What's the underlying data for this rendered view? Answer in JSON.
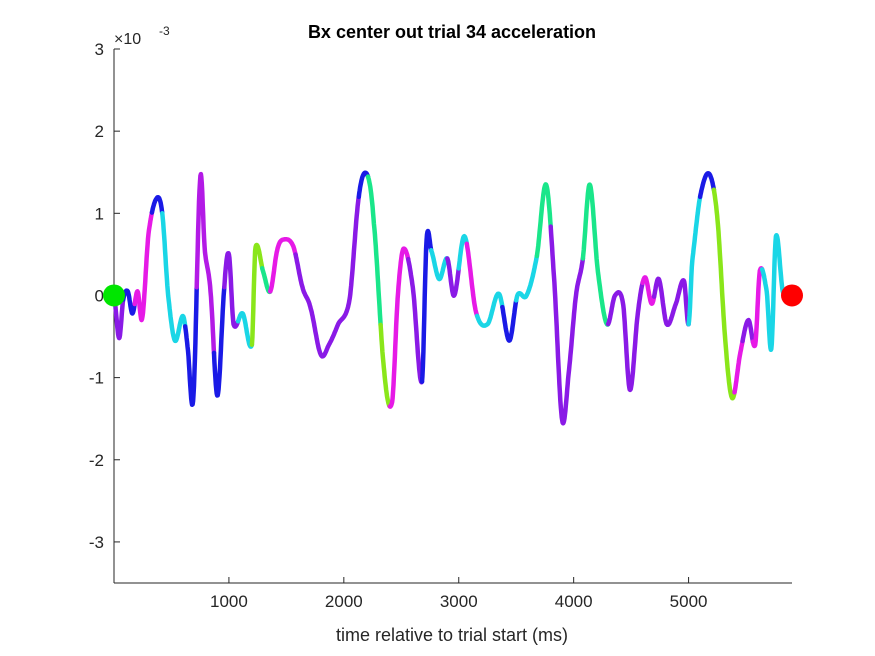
{
  "chart_data": {
    "type": "scatter",
    "title": "Bx  center out trial 34 acceleration",
    "xlabel": "time relative to trial start (ms)",
    "ylabel": "",
    "exponent_label": "×10",
    "exponent_power": "-3",
    "xlim": [
      0,
      5900
    ],
    "ylim": [
      -3.5,
      3
    ],
    "xticks": [
      1000,
      2000,
      3000,
      4000,
      5000
    ],
    "xtick_labels": [
      "1000",
      "2000",
      "3000",
      "4000",
      "5000"
    ],
    "yticks": [
      3,
      2,
      1,
      0,
      -1,
      -2,
      -3
    ],
    "ytick_labels": [
      "3",
      "2",
      "1",
      "0",
      "-1",
      "-2",
      "-3"
    ],
    "grid": false,
    "start_marker": {
      "x": 0,
      "y": 0,
      "color": "#00e600"
    },
    "end_marker": {
      "x": 5900,
      "y": 0,
      "color": "#ff0000"
    },
    "colors": {
      "blue": "#1a1ae6",
      "violet": "#8a1ae6",
      "magenta": "#e61ae6",
      "cyan": "#1ad6e6",
      "green": "#1ae68a",
      "lime": "#8ae61a",
      "purple": "#b31ae6"
    },
    "keypoints": [
      [
        0,
        0.0
      ],
      [
        45,
        -0.52
      ],
      [
        80,
        -0.05
      ],
      [
        120,
        0.05
      ],
      [
        160,
        -0.22
      ],
      [
        205,
        0.05
      ],
      [
        245,
        -0.28
      ],
      [
        300,
        0.75
      ],
      [
        370,
        1.18
      ],
      [
        420,
        1.0
      ],
      [
        470,
        0.02
      ],
      [
        530,
        -0.55
      ],
      [
        600,
        -0.25
      ],
      [
        640,
        -0.62
      ],
      [
        690,
        -1.25
      ],
      [
        750,
        1.42
      ],
      [
        790,
        0.55
      ],
      [
        840,
        0.05
      ],
      [
        900,
        -1.22
      ],
      [
        960,
        0.1
      ],
      [
        1000,
        0.5
      ],
      [
        1040,
        -0.35
      ],
      [
        1120,
        -0.22
      ],
      [
        1200,
        -0.6
      ],
      [
        1230,
        0.58
      ],
      [
        1300,
        0.28
      ],
      [
        1360,
        0.05
      ],
      [
        1420,
        0.55
      ],
      [
        1470,
        0.68
      ],
      [
        1560,
        0.6
      ],
      [
        1640,
        0.1
      ],
      [
        1710,
        -0.15
      ],
      [
        1800,
        -0.72
      ],
      [
        1870,
        -0.6
      ],
      [
        1950,
        -0.35
      ],
      [
        2050,
        -0.05
      ],
      [
        2130,
        1.2
      ],
      [
        2200,
        1.48
      ],
      [
        2260,
        0.9
      ],
      [
        2350,
        -0.9
      ],
      [
        2420,
        -1.3
      ],
      [
        2470,
        0.0
      ],
      [
        2520,
        0.57
      ],
      [
        2600,
        0.1
      ],
      [
        2680,
        -1.05
      ],
      [
        2720,
        0.68
      ],
      [
        2760,
        0.55
      ],
      [
        2830,
        0.2
      ],
      [
        2900,
        0.45
      ],
      [
        2960,
        0.0
      ],
      [
        3050,
        0.72
      ],
      [
        3150,
        -0.2
      ],
      [
        3250,
        -0.35
      ],
      [
        3350,
        0.02
      ],
      [
        3440,
        -0.55
      ],
      [
        3510,
        0.0
      ],
      [
        3590,
        0.0
      ],
      [
        3680,
        0.48
      ],
      [
        3760,
        1.35
      ],
      [
        3830,
        0.2
      ],
      [
        3900,
        -1.52
      ],
      [
        3960,
        -0.9
      ],
      [
        4020,
        0.0
      ],
      [
        4080,
        0.45
      ],
      [
        4140,
        1.35
      ],
      [
        4210,
        0.3
      ],
      [
        4290,
        -0.35
      ],
      [
        4360,
        0.0
      ],
      [
        4430,
        -0.1
      ],
      [
        4490,
        -1.15
      ],
      [
        4560,
        -0.2
      ],
      [
        4620,
        0.22
      ],
      [
        4680,
        -0.1
      ],
      [
        4740,
        0.2
      ],
      [
        4810,
        -0.35
      ],
      [
        4890,
        -0.1
      ],
      [
        4960,
        0.18
      ],
      [
        5000,
        -0.35
      ],
      [
        5030,
        0.4
      ],
      [
        5100,
        1.2
      ],
      [
        5180,
        1.48
      ],
      [
        5250,
        0.95
      ],
      [
        5320,
        -0.55
      ],
      [
        5380,
        -1.25
      ],
      [
        5450,
        -0.7
      ],
      [
        5520,
        -0.3
      ],
      [
        5580,
        -0.6
      ],
      [
        5620,
        0.3
      ],
      [
        5680,
        0.05
      ],
      [
        5720,
        -0.65
      ],
      [
        5760,
        0.72
      ],
      [
        5820,
        0.05
      ],
      [
        5900,
        0.0
      ]
    ],
    "color_segments": [
      {
        "from": 0,
        "to": 80,
        "color": "violet"
      },
      {
        "from": 80,
        "to": 180,
        "color": "blue"
      },
      {
        "from": 180,
        "to": 330,
        "color": "magenta"
      },
      {
        "from": 330,
        "to": 420,
        "color": "blue"
      },
      {
        "from": 420,
        "to": 620,
        "color": "cyan"
      },
      {
        "from": 620,
        "to": 720,
        "color": "blue"
      },
      {
        "from": 720,
        "to": 870,
        "color": "purple"
      },
      {
        "from": 870,
        "to": 960,
        "color": "blue"
      },
      {
        "from": 960,
        "to": 1080,
        "color": "violet"
      },
      {
        "from": 1080,
        "to": 1200,
        "color": "cyan"
      },
      {
        "from": 1200,
        "to": 1290,
        "color": "lime"
      },
      {
        "from": 1290,
        "to": 1360,
        "color": "green"
      },
      {
        "from": 1360,
        "to": 1580,
        "color": "magenta"
      },
      {
        "from": 1580,
        "to": 2130,
        "color": "violet"
      },
      {
        "from": 2130,
        "to": 2210,
        "color": "blue"
      },
      {
        "from": 2210,
        "to": 2320,
        "color": "green"
      },
      {
        "from": 2320,
        "to": 2400,
        "color": "lime"
      },
      {
        "from": 2400,
        "to": 2560,
        "color": "magenta"
      },
      {
        "from": 2560,
        "to": 2680,
        "color": "violet"
      },
      {
        "from": 2680,
        "to": 2760,
        "color": "blue"
      },
      {
        "from": 2760,
        "to": 2900,
        "color": "cyan"
      },
      {
        "from": 2900,
        "to": 3000,
        "color": "violet"
      },
      {
        "from": 3000,
        "to": 3070,
        "color": "cyan"
      },
      {
        "from": 3070,
        "to": 3160,
        "color": "magenta"
      },
      {
        "from": 3160,
        "to": 3380,
        "color": "cyan"
      },
      {
        "from": 3380,
        "to": 3500,
        "color": "blue"
      },
      {
        "from": 3500,
        "to": 3680,
        "color": "cyan"
      },
      {
        "from": 3680,
        "to": 3800,
        "color": "green"
      },
      {
        "from": 3800,
        "to": 4080,
        "color": "violet"
      },
      {
        "from": 4080,
        "to": 4300,
        "color": "green"
      },
      {
        "from": 4300,
        "to": 4600,
        "color": "violet"
      },
      {
        "from": 4600,
        "to": 4700,
        "color": "magenta"
      },
      {
        "from": 4700,
        "to": 4850,
        "color": "violet"
      },
      {
        "from": 4850,
        "to": 5000,
        "color": "violet"
      },
      {
        "from": 5000,
        "to": 5100,
        "color": "cyan"
      },
      {
        "from": 5100,
        "to": 5220,
        "color": "blue"
      },
      {
        "from": 5220,
        "to": 5400,
        "color": "lime"
      },
      {
        "from": 5400,
        "to": 5470,
        "color": "magenta"
      },
      {
        "from": 5470,
        "to": 5560,
        "color": "violet"
      },
      {
        "from": 5560,
        "to": 5640,
        "color": "magenta"
      },
      {
        "from": 5640,
        "to": 5900,
        "color": "cyan"
      }
    ]
  }
}
